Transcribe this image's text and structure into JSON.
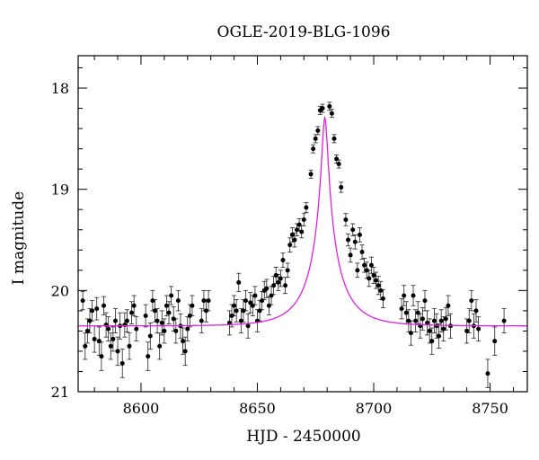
{
  "chart_data": {
    "type": "scatter",
    "title": "OGLE-2019-BLG-1096",
    "xlabel": "HJD - 2450000",
    "ylabel": "I magnitude",
    "xlim": [
      8573,
      8766
    ],
    "ylim": [
      21.0,
      17.68
    ],
    "y_inverted": true,
    "grid": false,
    "x_ticks": [
      8600,
      8650,
      8700,
      8750
    ],
    "x_tick_labels": [
      "8600",
      "8650",
      "8700",
      "8750"
    ],
    "y_ticks": [
      18,
      19,
      20,
      21
    ],
    "y_tick_labels": [
      "18",
      "19",
      "20",
      "21"
    ],
    "marker_color": "#000000",
    "model_color": "#e020e0",
    "model": {
      "t0": 8679.0,
      "u0": 0.08,
      "tE": 15.0,
      "base_mag": 20.35,
      "fs": 0.49
    },
    "series": [
      {
        "points": [
          [
            8575,
            20.1,
            0.09
          ],
          [
            8576,
            20.55,
            0.13
          ],
          [
            8577,
            20.4,
            0.12
          ],
          [
            8578,
            20.3,
            0.12
          ],
          [
            8579,
            20.2,
            0.1
          ],
          [
            8580,
            20.48,
            0.13
          ],
          [
            8581,
            20.18,
            0.11
          ],
          [
            8582,
            20.5,
            0.14
          ],
          [
            8583,
            20.65,
            0.14
          ],
          [
            8584,
            20.15,
            0.09
          ],
          [
            8585,
            20.34,
            0.12
          ],
          [
            8586,
            20.38,
            0.12
          ],
          [
            8587,
            20.55,
            0.13
          ],
          [
            8588,
            20.48,
            0.12
          ],
          [
            8589,
            20.3,
            0.12
          ],
          [
            8590,
            20.6,
            0.14
          ],
          [
            8591,
            20.35,
            0.13
          ],
          [
            8592,
            20.72,
            0.14
          ],
          [
            8593,
            20.34,
            0.12
          ],
          [
            8594,
            20.3,
            0.11
          ],
          [
            8595,
            20.55,
            0.13
          ],
          [
            8596,
            20.22,
            0.11
          ],
          [
            8597,
            20.15,
            0.1
          ],
          [
            8598,
            20.38,
            0.12
          ],
          [
            8602,
            20.25,
            0.11
          ],
          [
            8603,
            20.65,
            0.14
          ],
          [
            8604,
            20.45,
            0.13
          ],
          [
            8605,
            20.1,
            0.1
          ],
          [
            8606,
            20.2,
            0.11
          ],
          [
            8607,
            20.3,
            0.12
          ],
          [
            8608,
            20.55,
            0.13
          ],
          [
            8609,
            20.32,
            0.12
          ],
          [
            8610,
            20.4,
            0.12
          ],
          [
            8611,
            20.15,
            0.1
          ],
          [
            8612,
            20.22,
            0.11
          ],
          [
            8613,
            20.05,
            0.09
          ],
          [
            8614,
            20.28,
            0.12
          ],
          [
            8615,
            20.4,
            0.12
          ],
          [
            8616,
            20.1,
            0.1
          ],
          [
            8617,
            20.35,
            0.12
          ],
          [
            8618,
            20.5,
            0.13
          ],
          [
            8619,
            20.6,
            0.14
          ],
          [
            8620,
            20.38,
            0.12
          ],
          [
            8621,
            20.25,
            0.11
          ],
          [
            8622,
            20.15,
            0.1
          ],
          [
            8626,
            20.3,
            0.12
          ],
          [
            8627,
            20.1,
            0.1
          ],
          [
            8628,
            20.2,
            0.11
          ],
          [
            8629,
            20.1,
            0.1
          ],
          [
            8638,
            20.32,
            0.12
          ],
          [
            8639,
            20.25,
            0.11
          ],
          [
            8640,
            20.15,
            0.1
          ],
          [
            8641,
            20.2,
            0.11
          ],
          [
            8642,
            19.92,
            0.09
          ],
          [
            8643,
            20.3,
            0.12
          ],
          [
            8644,
            20.2,
            0.11
          ],
          [
            8645,
            20.1,
            0.1
          ],
          [
            8646,
            20.35,
            0.12
          ],
          [
            8647,
            20.12,
            0.1
          ],
          [
            8648,
            20.15,
            0.1
          ],
          [
            8649,
            20.05,
            0.09
          ],
          [
            8650,
            20.3,
            0.11
          ],
          [
            8651,
            20.2,
            0.1
          ],
          [
            8652,
            20.1,
            0.09
          ],
          [
            8653,
            20.0,
            0.09
          ],
          [
            8654,
            19.98,
            0.09
          ],
          [
            8655,
            20.15,
            0.09
          ],
          [
            8656,
            20.05,
            0.09
          ],
          [
            8657,
            19.95,
            0.09
          ],
          [
            8658,
            19.85,
            0.08
          ],
          [
            8659,
            19.92,
            0.08
          ],
          [
            8660,
            19.88,
            0.08
          ],
          [
            8661,
            19.7,
            0.07
          ],
          [
            8662,
            19.95,
            0.08
          ],
          [
            8663,
            19.8,
            0.07
          ],
          [
            8664,
            19.55,
            0.07
          ],
          [
            8665,
            19.45,
            0.07
          ],
          [
            8666,
            19.5,
            0.07
          ],
          [
            8667,
            19.4,
            0.06
          ],
          [
            8668,
            19.35,
            0.06
          ],
          [
            8669,
            19.42,
            0.06
          ],
          [
            8670,
            19.3,
            0.06
          ],
          [
            8671,
            19.18,
            0.05
          ],
          [
            8673,
            18.85,
            0.04
          ],
          [
            8674,
            18.6,
            0.04
          ],
          [
            8675,
            18.5,
            0.04
          ],
          [
            8676,
            18.42,
            0.04
          ],
          [
            8677,
            18.22,
            0.04
          ],
          [
            8678,
            18.2,
            0.04
          ],
          [
            8681,
            18.18,
            0.04
          ],
          [
            8682,
            18.25,
            0.04
          ],
          [
            8683,
            18.5,
            0.04
          ],
          [
            8684,
            18.7,
            0.04
          ],
          [
            8685,
            18.75,
            0.04
          ],
          [
            8686,
            18.98,
            0.05
          ],
          [
            8688,
            19.3,
            0.06
          ],
          [
            8689,
            19.5,
            0.06
          ],
          [
            8690,
            19.65,
            0.07
          ],
          [
            8691,
            19.4,
            0.06
          ],
          [
            8692,
            19.52,
            0.07
          ],
          [
            8693,
            19.8,
            0.07
          ],
          [
            8694,
            19.45,
            0.07
          ],
          [
            8695,
            19.62,
            0.07
          ],
          [
            8696,
            19.75,
            0.07
          ],
          [
            8697,
            19.8,
            0.08
          ],
          [
            8698,
            19.88,
            0.08
          ],
          [
            8699,
            19.75,
            0.08
          ],
          [
            8700,
            19.85,
            0.08
          ],
          [
            8701,
            19.9,
            0.08
          ],
          [
            8702,
            19.95,
            0.09
          ],
          [
            8703,
            20.0,
            0.09
          ],
          [
            8704,
            20.08,
            0.09
          ],
          [
            8712,
            20.18,
            0.1
          ],
          [
            8713,
            20.05,
            0.1
          ],
          [
            8714,
            20.22,
            0.11
          ],
          [
            8715,
            20.3,
            0.11
          ],
          [
            8716,
            20.42,
            0.12
          ],
          [
            8717,
            20.05,
            0.1
          ],
          [
            8718,
            20.3,
            0.11
          ],
          [
            8719,
            20.22,
            0.11
          ],
          [
            8720,
            20.35,
            0.12
          ],
          [
            8721,
            20.28,
            0.11
          ],
          [
            8722,
            20.1,
            0.1
          ],
          [
            8723,
            20.32,
            0.12
          ],
          [
            8724,
            20.4,
            0.12
          ],
          [
            8725,
            20.5,
            0.13
          ],
          [
            8726,
            20.3,
            0.12
          ],
          [
            8727,
            20.35,
            0.12
          ],
          [
            8728,
            20.45,
            0.12
          ],
          [
            8729,
            20.3,
            0.11
          ],
          [
            8730,
            20.38,
            0.12
          ],
          [
            8731,
            20.28,
            0.11
          ],
          [
            8732,
            20.15,
            0.1
          ],
          [
            8733,
            20.35,
            0.12
          ],
          [
            8740,
            20.4,
            0.12
          ],
          [
            8741,
            20.3,
            0.12
          ],
          [
            8742,
            20.1,
            0.1
          ],
          [
            8743,
            20.35,
            0.12
          ],
          [
            8744,
            20.2,
            0.11
          ],
          [
            8745,
            20.38,
            0.12
          ],
          [
            8749,
            20.82,
            0.14
          ],
          [
            8752,
            20.5,
            0.14
          ],
          [
            8756,
            20.3,
            0.12
          ]
        ]
      }
    ]
  }
}
